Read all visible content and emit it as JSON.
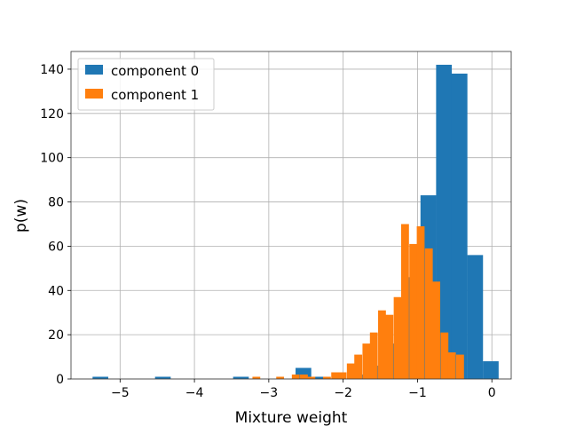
{
  "chart_data": {
    "type": "bar",
    "xlabel": "Mixture weight",
    "ylabel": "p(w)",
    "xlim": [
      -5.66,
      0.26
    ],
    "ylim": [
      0,
      148
    ],
    "xticks": [
      -5,
      -4,
      -3,
      -2,
      -1,
      0
    ],
    "xtick_labels": [
      "−5",
      "−4",
      "−3",
      "−2",
      "−1",
      "0"
    ],
    "yticks": [
      0,
      20,
      40,
      60,
      80,
      100,
      120,
      140
    ],
    "ytick_labels": [
      "0",
      "20",
      "40",
      "60",
      "80",
      "100",
      "120",
      "140"
    ],
    "grid": true,
    "legend_position": "top-left",
    "series": [
      {
        "name": "component 0",
        "color": "#1f77b4",
        "bin_width": 0.211,
        "bins": [
          [
            -5.37,
            1
          ],
          [
            -4.53,
            1
          ],
          [
            -3.48,
            1
          ],
          [
            -2.64,
            5
          ],
          [
            -2.43,
            1
          ],
          [
            -1.8,
            2
          ],
          [
            -1.59,
            6
          ],
          [
            -1.38,
            16
          ],
          [
            -1.17,
            46
          ],
          [
            -0.96,
            83
          ],
          [
            -0.75,
            142
          ],
          [
            -0.54,
            138
          ],
          [
            -0.33,
            56
          ],
          [
            -0.12,
            8
          ]
        ]
      },
      {
        "name": "component 1",
        "color": "#ff7f0e",
        "bin_width": 0.105,
        "bins": [
          [
            -3.22,
            1
          ],
          [
            -2.9,
            1
          ],
          [
            -2.69,
            2
          ],
          [
            -2.58,
            2
          ],
          [
            -2.48,
            1
          ],
          [
            -2.27,
            1
          ],
          [
            -2.16,
            3
          ],
          [
            -2.06,
            3
          ],
          [
            -1.95,
            7
          ],
          [
            -1.85,
            11
          ],
          [
            -1.74,
            16
          ],
          [
            -1.64,
            21
          ],
          [
            -1.53,
            31
          ],
          [
            -1.43,
            29
          ],
          [
            -1.32,
            37
          ],
          [
            -1.22,
            70
          ],
          [
            -1.11,
            61
          ],
          [
            -1.01,
            69
          ],
          [
            -0.9,
            59
          ],
          [
            -0.8,
            44
          ],
          [
            -0.69,
            21
          ],
          [
            -0.59,
            12
          ],
          [
            -0.48,
            11
          ]
        ]
      }
    ]
  }
}
